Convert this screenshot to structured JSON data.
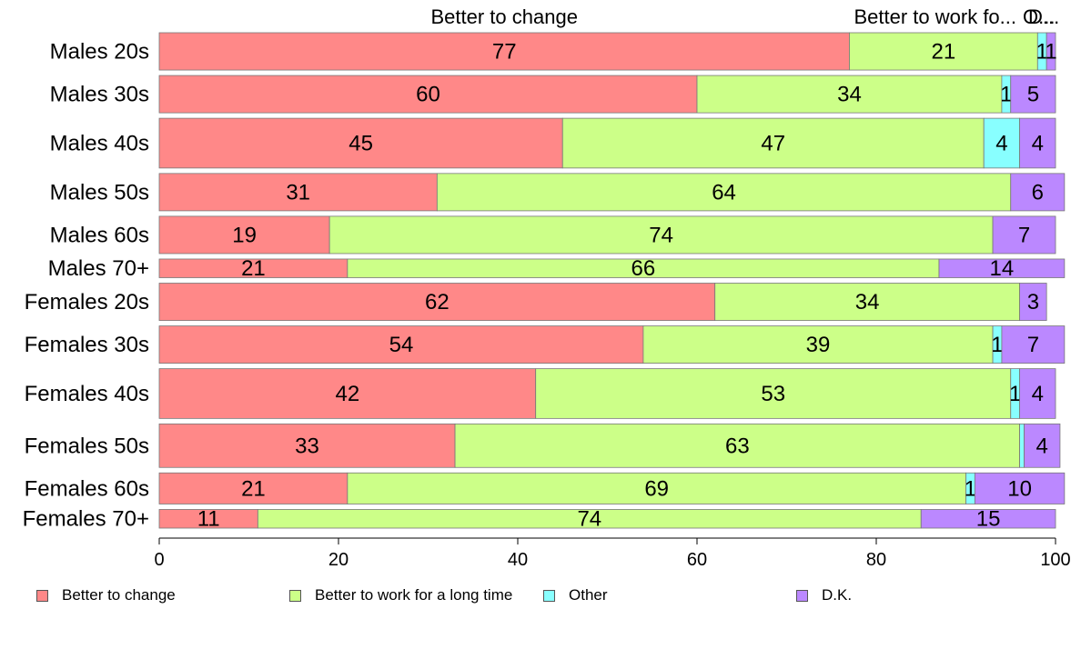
{
  "chart_data": {
    "type": "bar",
    "orientation": "horizontal",
    "stacked": true,
    "categories": [
      "Males 20s",
      "Males 30s",
      "Males 40s",
      "Males 50s",
      "Males 60s",
      "Males 70+",
      "Females 20s",
      "Females 30s",
      "Females 40s",
      "Females 50s",
      "Females 60s",
      "Females 70+"
    ],
    "row_weights": [
      3,
      3,
      4,
      3,
      3,
      1.5,
      3,
      3,
      4,
      3.5,
      2.5,
      1.5
    ],
    "series": [
      {
        "name": "Better to change",
        "color": "#ff8888",
        "values": [
          77,
          60,
          45,
          31,
          19,
          21,
          62,
          54,
          42,
          33,
          21,
          11
        ],
        "labels": [
          "77",
          "60",
          "45",
          "31",
          "19",
          "21",
          "62",
          "54",
          "42",
          "33",
          "21",
          "11"
        ]
      },
      {
        "name": "Better to work for a long time",
        "color": "#ccff88",
        "values": [
          21,
          34,
          47,
          64,
          74,
          66,
          34,
          39,
          53,
          63,
          69,
          74
        ],
        "labels": [
          "21",
          "34",
          "47",
          "64",
          "74",
          "66",
          "34",
          "39",
          "53",
          "63",
          "69",
          "74"
        ]
      },
      {
        "name": "Other",
        "color": "#88ffff",
        "values": [
          1,
          1,
          4,
          0,
          0,
          0,
          0,
          1,
          1,
          0.5,
          1,
          0
        ],
        "labels": [
          "1",
          "1",
          "4",
          "",
          "",
          "",
          "",
          "1",
          "1",
          "",
          "1",
          ""
        ]
      },
      {
        "name": "D.K.",
        "color": "#bb88ff",
        "values": [
          1,
          5,
          4,
          6,
          7,
          14,
          3,
          7,
          4,
          4,
          10,
          15
        ],
        "labels": [
          "1",
          "5",
          "4",
          "6",
          "7",
          "14",
          "3",
          "7",
          "4",
          "4",
          "10",
          "15"
        ]
      }
    ],
    "top_labels": [
      "Better to change",
      "Better to work fo...",
      "O...",
      "D..."
    ],
    "xlim": [
      0,
      100
    ],
    "xticks": [
      0,
      20,
      40,
      60,
      80,
      100
    ],
    "xtick_labels": [
      "0",
      "20",
      "40",
      "60",
      "80",
      "100"
    ],
    "grid": false,
    "legend_position": "bottom"
  },
  "legend": {
    "items": [
      {
        "label": "Better to change",
        "color": "#ff8888"
      },
      {
        "label": "Better to work for a long time",
        "color": "#ccff88"
      },
      {
        "label": "Other",
        "color": "#88ffff"
      },
      {
        "label": "D.K.",
        "color": "#bb88ff"
      }
    ]
  }
}
